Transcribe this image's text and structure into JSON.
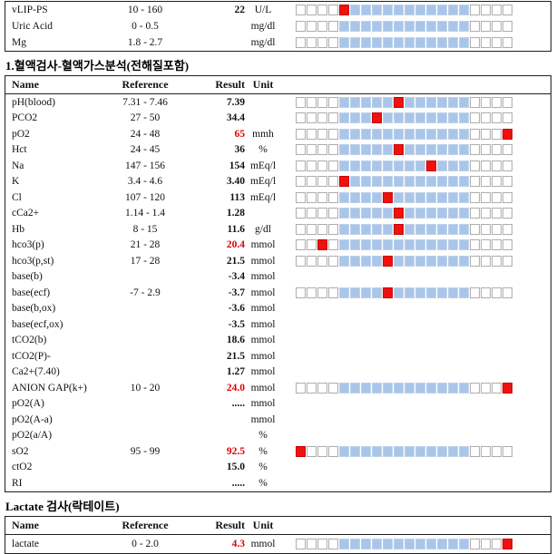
{
  "colors": {
    "range_blue": "#a9c6e9",
    "marker_red": "#ef1010",
    "abnormal_text_red": "#de0000",
    "cell_border_gray": "#adadad",
    "table_border": "#1f1f1f"
  },
  "bar": {
    "total_cells": 20,
    "range_start": 5,
    "range_end": 16
  },
  "columns": {
    "name": "Name",
    "reference": "Reference",
    "result": "Result",
    "unit": "Unit"
  },
  "sections": [
    {
      "id": "top-partial-table",
      "header": "",
      "rows": [
        {
          "name": "vLIP-PS",
          "reference": "10 - 160",
          "result": "22",
          "result_abnormal": false,
          "unit": "U/L",
          "bar": true,
          "marker": 5
        },
        {
          "name": "Uric Acid",
          "reference": "0 - 0.5",
          "result": "",
          "result_abnormal": false,
          "unit": "mg/dl",
          "bar": true,
          "marker": null
        },
        {
          "name": "Mg",
          "reference": "1.8 - 2.7",
          "result": "",
          "result_abnormal": false,
          "unit": "mg/dl",
          "bar": true,
          "marker": null
        }
      ]
    },
    {
      "id": "blood-gas-table",
      "header": "1.혈액검사-혈액가스분석(전해질포함)",
      "rows": [
        {
          "name": "pH(blood)",
          "reference": "7.31 - 7.46",
          "result": "7.39",
          "result_abnormal": false,
          "unit": "",
          "bar": true,
          "marker": 10
        },
        {
          "name": "PCO2",
          "reference": "27 - 50",
          "result": "34.4",
          "result_abnormal": false,
          "unit": "",
          "bar": true,
          "marker": 8
        },
        {
          "name": "pO2",
          "reference": "24 - 48",
          "result": "65",
          "result_abnormal": true,
          "unit": "mmh",
          "bar": true,
          "marker": 20
        },
        {
          "name": "Hct",
          "reference": "24 - 45",
          "result": "36",
          "result_abnormal": false,
          "unit": "%",
          "bar": true,
          "marker": 10
        },
        {
          "name": "Na",
          "reference": "147 - 156",
          "result": "154",
          "result_abnormal": false,
          "unit": "mEq/l",
          "bar": true,
          "marker": 13
        },
        {
          "name": "K",
          "reference": "3.4 - 4.6",
          "result": "3.40",
          "result_abnormal": false,
          "unit": "mEq/l",
          "bar": true,
          "marker": 5
        },
        {
          "name": "Cl",
          "reference": "107 - 120",
          "result": "113",
          "result_abnormal": false,
          "unit": "mEq/l",
          "bar": true,
          "marker": 9
        },
        {
          "name": "cCa2+",
          "reference": "1.14 - 1.4",
          "result": "1.28",
          "result_abnormal": false,
          "unit": "",
          "bar": true,
          "marker": 10
        },
        {
          "name": "Hb",
          "reference": "8 - 15",
          "result": "11.6",
          "result_abnormal": false,
          "unit": "g/dl",
          "bar": true,
          "marker": 10
        },
        {
          "name": "hco3(p)",
          "reference": "21 - 28",
          "result": "20.4",
          "result_abnormal": true,
          "unit": "mmol",
          "bar": true,
          "marker": 3
        },
        {
          "name": "hco3(p,st)",
          "reference": "17 - 28",
          "result": "21.5",
          "result_abnormal": false,
          "unit": "mmol",
          "bar": true,
          "marker": 9
        },
        {
          "name": "base(b)",
          "reference": "",
          "result": "-3.4",
          "result_abnormal": false,
          "unit": "mmol",
          "bar": false,
          "marker": null
        },
        {
          "name": "base(ecf)",
          "reference": "-7 - 2.9",
          "result": "-3.7",
          "result_abnormal": false,
          "unit": "mmol",
          "bar": true,
          "marker": 9
        },
        {
          "name": "base(b,ox)",
          "reference": "",
          "result": "-3.6",
          "result_abnormal": false,
          "unit": "mmol",
          "bar": false,
          "marker": null
        },
        {
          "name": "base(ecf,ox)",
          "reference": "",
          "result": "-3.5",
          "result_abnormal": false,
          "unit": "mmol",
          "bar": false,
          "marker": null
        },
        {
          "name": "tCO2(b)",
          "reference": "",
          "result": "18.6",
          "result_abnormal": false,
          "unit": "mmol",
          "bar": false,
          "marker": null
        },
        {
          "name": "tCO2(P)-",
          "reference": "",
          "result": "21.5",
          "result_abnormal": false,
          "unit": "mmol",
          "bar": false,
          "marker": null
        },
        {
          "name": "Ca2+(7.40)",
          "reference": "",
          "result": "1.27",
          "result_abnormal": false,
          "unit": "mmol",
          "bar": false,
          "marker": null
        },
        {
          "name": "ANION GAP(k+)",
          "reference": "10 - 20",
          "result": "24.0",
          "result_abnormal": true,
          "unit": "mmol",
          "bar": true,
          "marker": 20
        },
        {
          "name": "pO2(A)",
          "reference": "",
          "result": ".....",
          "result_abnormal": false,
          "unit": "mmol",
          "bar": false,
          "marker": null
        },
        {
          "name": "pO2(A-a)",
          "reference": "",
          "result": "",
          "result_abnormal": false,
          "unit": "mmol",
          "bar": false,
          "marker": null
        },
        {
          "name": "pO2(a/A)",
          "reference": "",
          "result": "",
          "result_abnormal": false,
          "unit": "%",
          "bar": false,
          "marker": null
        },
        {
          "name": "sO2",
          "reference": "95 - 99",
          "result": "92.5",
          "result_abnormal": true,
          "unit": "%",
          "bar": true,
          "marker": 1
        },
        {
          "name": "ctO2",
          "reference": "",
          "result": "15.0",
          "result_abnormal": false,
          "unit": "%",
          "bar": false,
          "marker": null
        },
        {
          "name": "RI",
          "reference": "",
          "result": ".....",
          "result_abnormal": false,
          "unit": "%",
          "bar": false,
          "marker": null
        }
      ]
    },
    {
      "id": "lactate-table",
      "header": "Lactate 검사(락테이트)",
      "rows": [
        {
          "name": "lactate",
          "reference": "0 - 2.0",
          "result": "4.3",
          "result_abnormal": true,
          "unit": "mmol",
          "bar": true,
          "marker": 20
        }
      ]
    }
  ]
}
